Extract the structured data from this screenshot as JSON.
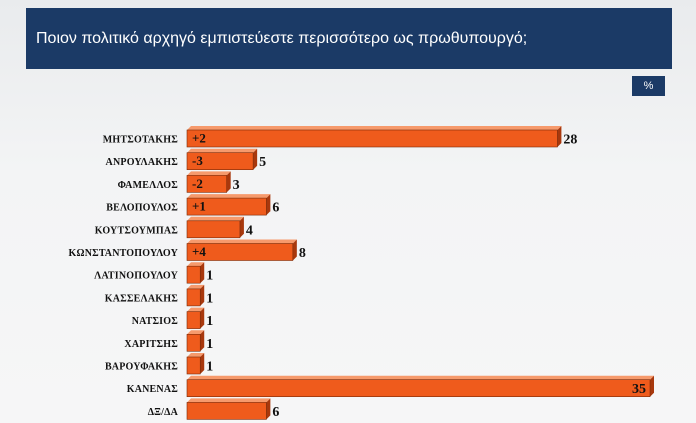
{
  "header": {
    "title": "Ποιον πολιτικό αρχηγό εμπιστεύεστε περισσότερο ως πρωθυπουργό;"
  },
  "unit_badge": "%",
  "colors": {
    "bar_front": "#ef5b1c",
    "bar_top": "#f69a6c",
    "bar_side": "#a8380d",
    "header_bg": "#1b3a66"
  },
  "chart_data": {
    "type": "bar",
    "orientation": "horizontal",
    "title": "Ποιον πολιτικό αρχηγό εμπιστεύεστε περισσότερο ως πρωθυπουργό;",
    "unit": "%",
    "categories": [
      "ΜΗΤΣΟΤΑΚΗΣ",
      "ΑΝΡΟΥΛΑΚΗΣ",
      "ΦΑΜΕΛΛΟΣ",
      "ΒΕΛΟΠΟΥΛΟΣ",
      "ΚΟΥΤΣΟΥΜΠΑΣ",
      "ΚΩΝΣΤΑΝΤΟΠΟΥΛΟΥ",
      "ΛΑΤΙΝΟΠΟΥΛΟΥ",
      "ΚΑΣΣΕΛΑΚΗΣ",
      "ΝΑΤΣΙΟΣ",
      "ΧΑΡΙΤΣΗΣ",
      "ΒΑΡΟΥΦΑΚΗΣ",
      "ΚΑΝΕΝΑΣ",
      "ΔΞ/ΔΑ"
    ],
    "values": [
      28,
      5,
      3,
      6,
      4,
      8,
      1,
      1,
      1,
      1,
      1,
      35,
      6
    ],
    "changes": [
      "+2",
      "-3",
      "-2",
      "+1",
      "",
      "+4",
      "",
      "",
      "",
      "",
      "",
      "",
      ""
    ],
    "xlim": [
      0,
      35
    ],
    "grid": false,
    "legend": "none"
  }
}
